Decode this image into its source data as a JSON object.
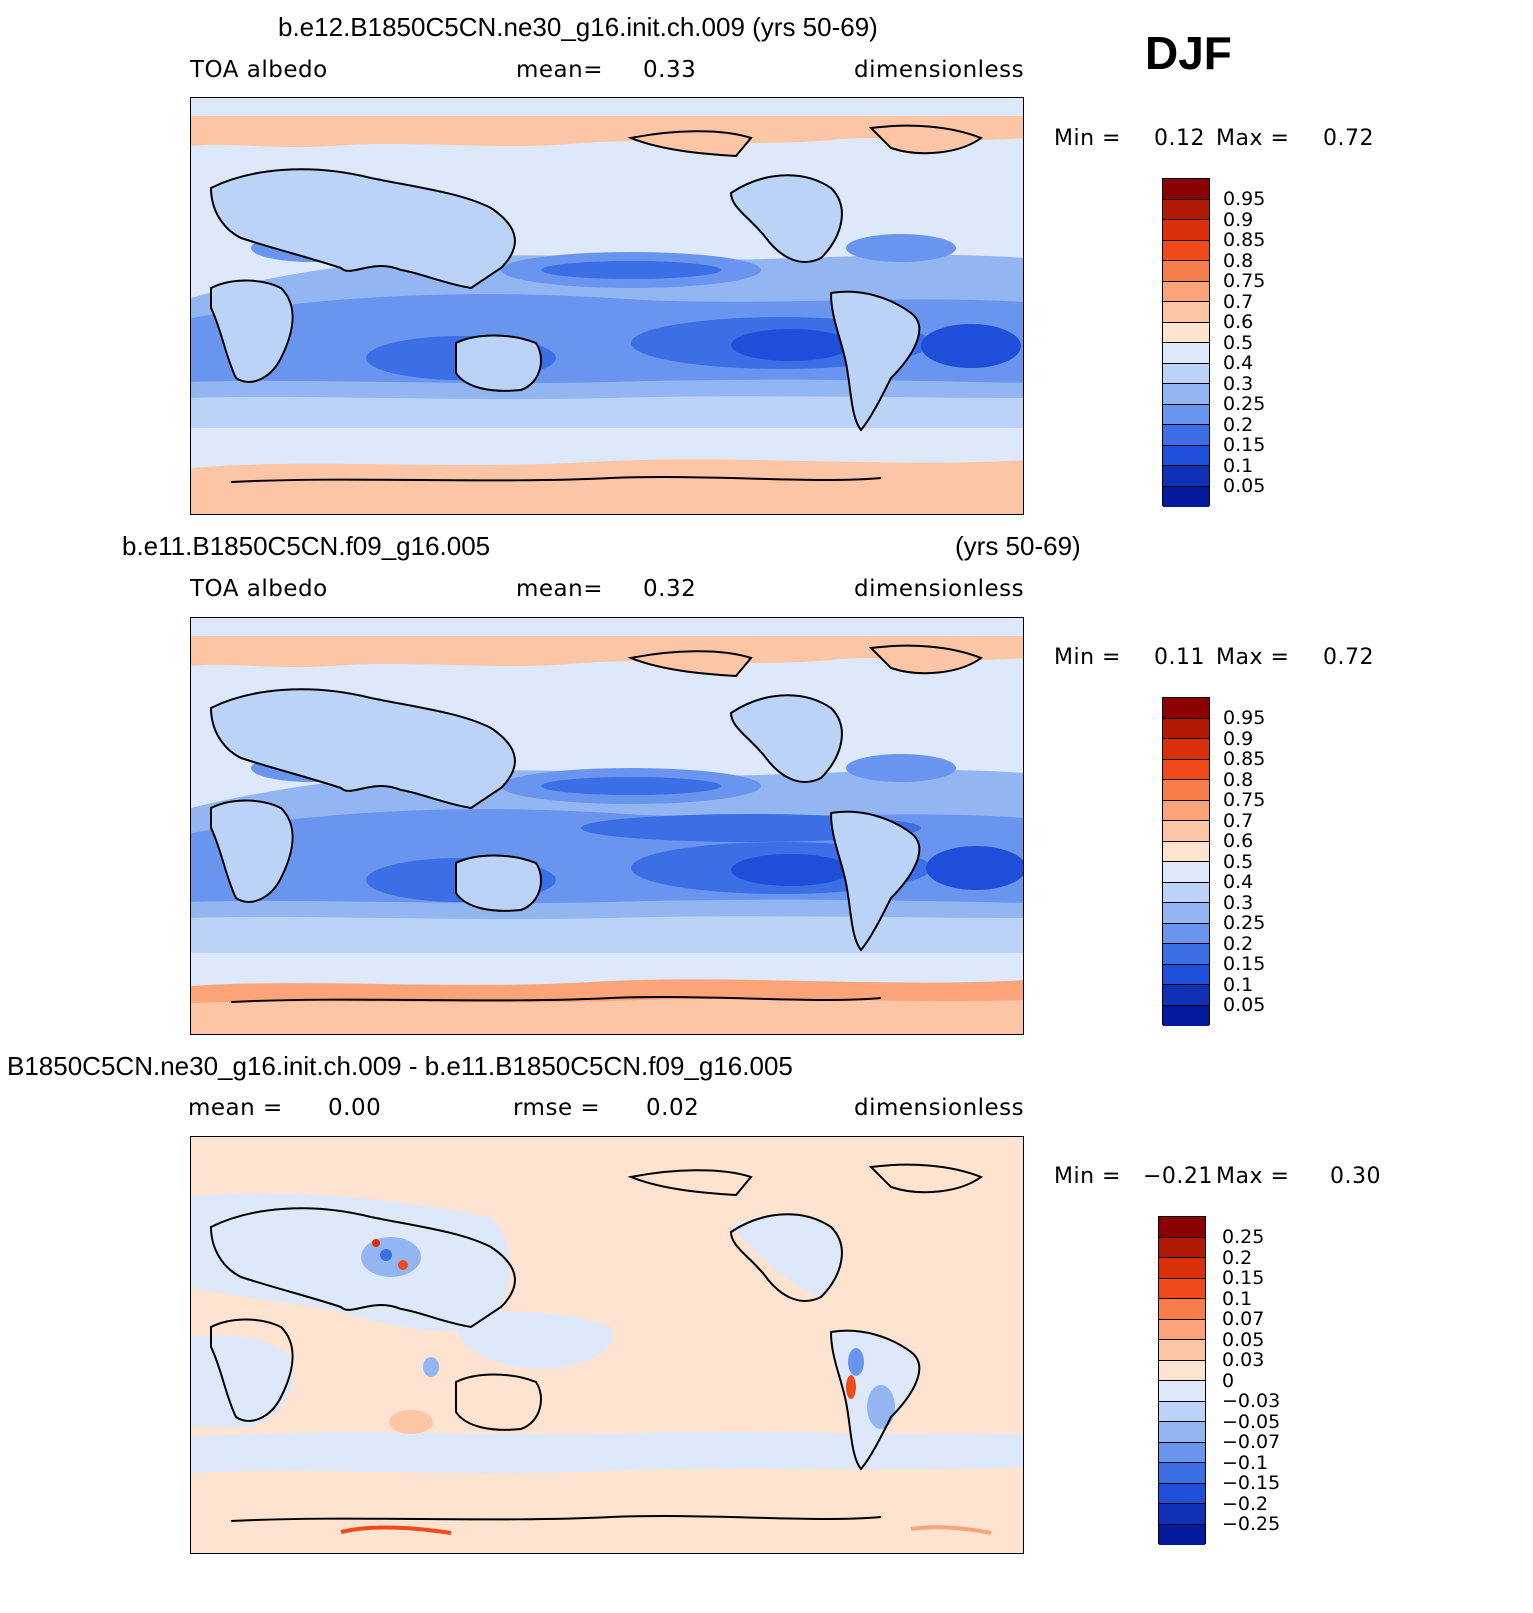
{
  "season": "DJF",
  "panels": [
    {
      "title_left": "b.e12.B1850C5CN.ne30_g16.init.ch.009 (yrs 50-69)",
      "title_right": "",
      "sub_left": "TOA albedo",
      "sub_mid_label": "mean=",
      "sub_mid_value": "0.33",
      "sub_right": "dimensionless",
      "min_label": "Min =",
      "min_value": "0.12",
      "max_label": "Max =",
      "max_value": "0.72",
      "levels": [
        "0.95",
        "0.9",
        "0.85",
        "0.8",
        "0.75",
        "0.7",
        "0.6",
        "0.5",
        "0.4",
        "0.3",
        "0.25",
        "0.2",
        "0.15",
        "0.1",
        "0.05"
      ],
      "colors": [
        "#8b0000",
        "#b01a05",
        "#d9300a",
        "#f04a1a",
        "#f77d4a",
        "#fba47a",
        "#fcc6a6",
        "#fde3d0",
        "#dde9fb",
        "#bcd3f8",
        "#93b6f3",
        "#6a95ee",
        "#3c6fe6",
        "#1f4fd9",
        "#1030b8",
        "#061aa0",
        "#000080"
      ]
    },
    {
      "title_left": "b.e11.B1850C5CN.f09_g16.005",
      "title_right": "(yrs 50-69)",
      "sub_left": "TOA albedo",
      "sub_mid_label": "mean=",
      "sub_mid_value": "0.32",
      "sub_right": "dimensionless",
      "min_label": "Min =",
      "min_value": "0.11",
      "max_label": "Max =",
      "max_value": "0.72",
      "levels": [
        "0.95",
        "0.9",
        "0.85",
        "0.8",
        "0.75",
        "0.7",
        "0.6",
        "0.5",
        "0.4",
        "0.3",
        "0.25",
        "0.2",
        "0.15",
        "0.1",
        "0.05"
      ]
    },
    {
      "title_left": "B1850C5CN.ne30_g16.init.ch.009 - b.e11.B1850C5CN.f09_g16.005",
      "title_right": "",
      "sub_left_label": "mean =",
      "sub_left_value": "0.00",
      "sub_mid_label": "rmse =",
      "sub_mid_value": "0.02",
      "sub_right": "dimensionless",
      "min_label": "Min =",
      "min_value": "−0.21",
      "max_label": "Max =",
      "max_value": "0.30",
      "levels": [
        "0.25",
        "0.2",
        "0.15",
        "0.1",
        "0.07",
        "0.05",
        "0.03",
        "0",
        "−0.03",
        "−0.05",
        "−0.07",
        "−0.1",
        "−0.15",
        "−0.2",
        "−0.25"
      ]
    }
  ]
}
